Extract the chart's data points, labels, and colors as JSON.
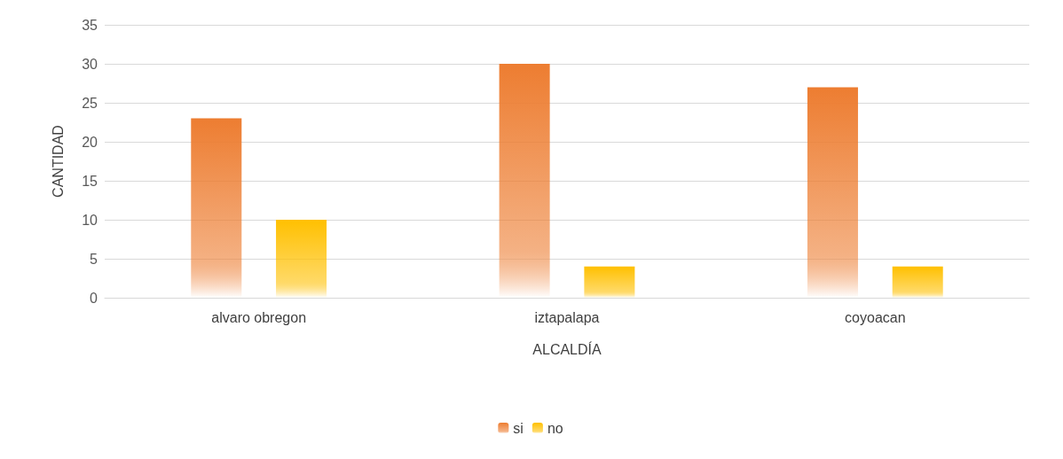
{
  "chart_data": {
    "type": "bar",
    "xlabel": "ALCALDÍA",
    "ylabel": "CANTIDAD",
    "categories": [
      "alvaro obregon",
      "iztapalapa",
      "coyoacan"
    ],
    "series": [
      {
        "name": "si",
        "color": "#ed7d31",
        "values": [
          23,
          30,
          27
        ]
      },
      {
        "name": "no",
        "color": "#ffc000",
        "values": [
          10,
          4,
          4
        ]
      }
    ],
    "ylim": [
      0,
      35
    ],
    "yticks": [
      0,
      5,
      10,
      15,
      20,
      25,
      30,
      35
    ],
    "grid": "y",
    "legend": "bottom"
  }
}
